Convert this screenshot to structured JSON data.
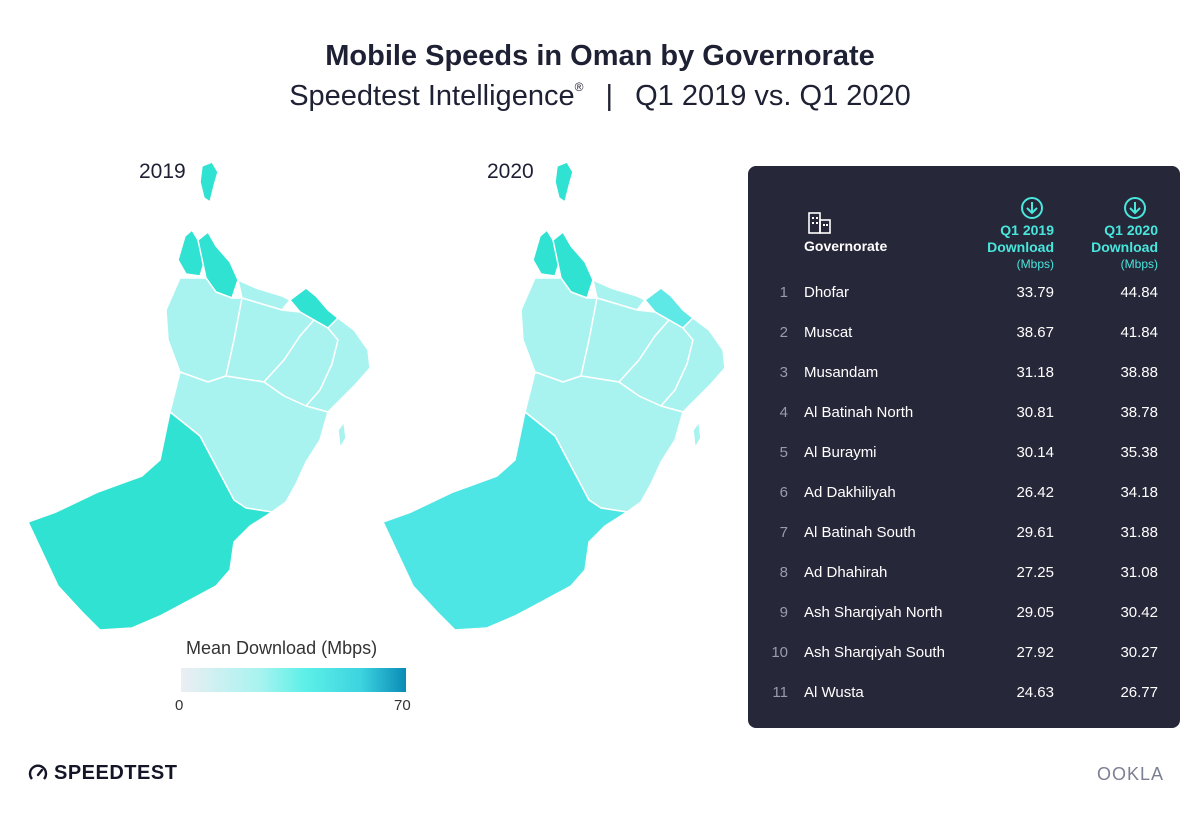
{
  "title": "Mobile Speeds in Oman by Governorate",
  "subtitle": {
    "brand": "Speedtest Intelligence",
    "registered_mark": "®",
    "separator": "|",
    "period": "Q1 2019 vs. Q1 2020"
  },
  "maps": [
    {
      "year": "2019"
    },
    {
      "year": "2020"
    }
  ],
  "legend": {
    "title": "Mean Download (Mbps)",
    "min": "0",
    "max": "70"
  },
  "table": {
    "header": {
      "governorate": "Governorate",
      "col1_line1": "Q1 2019",
      "col1_line2": "Download",
      "col1_unit": "(Mbps)",
      "col2_line1": "Q1 2020",
      "col2_line2": "Download",
      "col2_unit": "(Mbps)"
    },
    "rows": [
      {
        "rank": "1",
        "name": "Dhofar",
        "q1_2019": "33.79",
        "q1_2020": "44.84"
      },
      {
        "rank": "2",
        "name": "Muscat",
        "q1_2019": "38.67",
        "q1_2020": "41.84"
      },
      {
        "rank": "3",
        "name": "Musandam",
        "q1_2019": "31.18",
        "q1_2020": "38.88"
      },
      {
        "rank": "4",
        "name": "Al Batinah North",
        "q1_2019": "30.81",
        "q1_2020": "38.78"
      },
      {
        "rank": "5",
        "name": "Al Buraymi",
        "q1_2019": "30.14",
        "q1_2020": "35.38"
      },
      {
        "rank": "6",
        "name": "Ad Dakhiliyah",
        "q1_2019": "26.42",
        "q1_2020": "34.18"
      },
      {
        "rank": "7",
        "name": "Al Batinah South",
        "q1_2019": "29.61",
        "q1_2020": "31.88"
      },
      {
        "rank": "8",
        "name": "Ad Dhahirah",
        "q1_2019": "27.25",
        "q1_2020": "31.08"
      },
      {
        "rank": "9",
        "name": "Ash Sharqiyah North",
        "q1_2019": "29.05",
        "q1_2020": "30.42"
      },
      {
        "rank": "10",
        "name": "Ash Sharqiyah South",
        "q1_2019": "27.92",
        "q1_2020": "30.27"
      },
      {
        "rank": "11",
        "name": "Al Wusta",
        "q1_2019": "24.63",
        "q1_2020": "26.77"
      }
    ]
  },
  "footer": {
    "left_logo": "SPEEDTEST",
    "right_logo": "OOKLA"
  },
  "colors": {
    "panel_bg": "#262738",
    "accent": "#48e6dd",
    "text_dark": "#1e2033",
    "pale": "#a8f3f0",
    "mid": "#5ee8e6",
    "strong": "#2fe2d2"
  },
  "icons": [
    "governorate-buildings-icon",
    "download-arrow-icon",
    "speedtest-gauge-icon"
  ]
}
